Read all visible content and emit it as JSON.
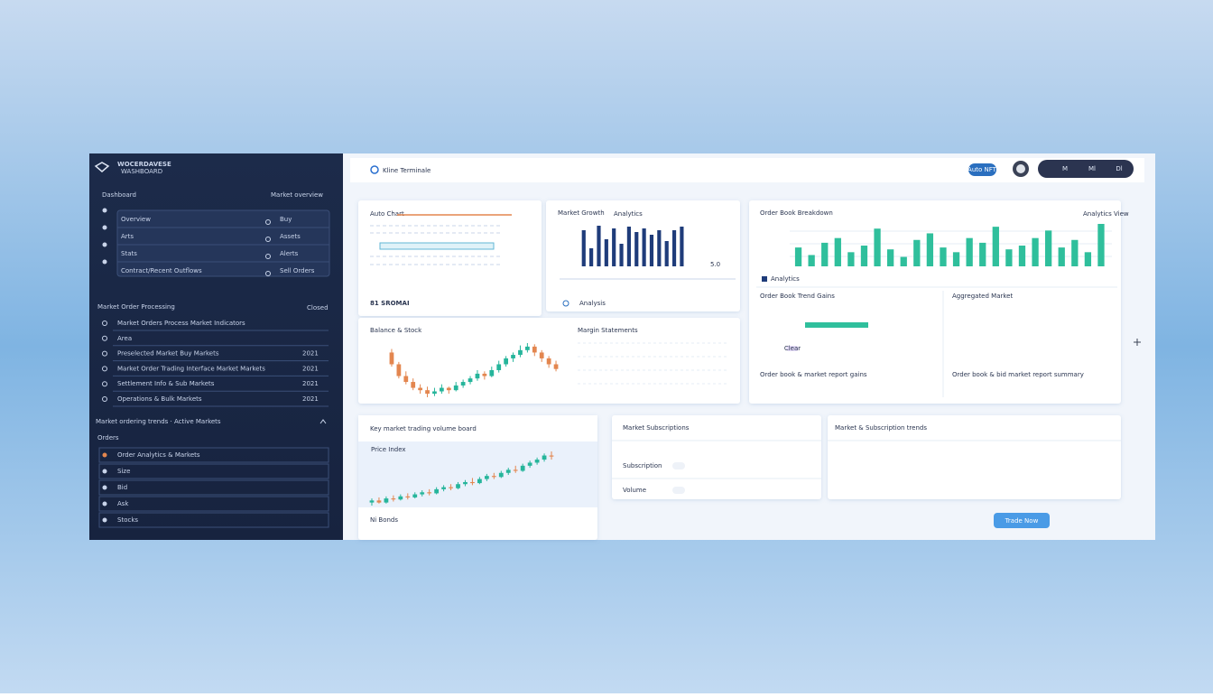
{
  "sidebar": {
    "brand": "WOCERDAVESE",
    "brand_sub": "WASHBOARD",
    "dashboard": {
      "title": "Dashboard",
      "action": "Market overview",
      "rows": [
        {
          "label": "Overview",
          "tag": "Buy"
        },
        {
          "label": "Arts",
          "tag": "Assets"
        },
        {
          "label": "Stats",
          "tag": "Alerts"
        },
        {
          "label": "Contract/Recent Outflows",
          "tag": "Sell Orders"
        }
      ]
    },
    "processing": {
      "title": "Market Order Processing",
      "action": "Closed",
      "rows": [
        {
          "label": "Market Orders Process Market Indicators"
        },
        {
          "label": "Area"
        },
        {
          "label": "Preselected Market Buy Markets",
          "value": "2021"
        },
        {
          "label": "Market Order Trading Interface Market Markets",
          "value": "2021"
        },
        {
          "label": "Settlement Info & Sub Markets",
          "value": "2021"
        },
        {
          "label": "Operations & Bulk Markets",
          "value": "2021"
        }
      ]
    },
    "trends": {
      "title": "Market ordering trends · Active Markets",
      "sub": "Orders",
      "rows": [
        "Order Analytics & Markets",
        "Size",
        "Bid",
        "Ask",
        "Stocks"
      ]
    }
  },
  "header": {
    "title": "Kline Terminale",
    "badge": "Auto NFT",
    "buttons": [
      "M",
      "Ml",
      "Dl"
    ]
  },
  "auto_chart": {
    "title": "Auto Chart",
    "value": "81 SROMAI"
  },
  "market_growth": {
    "title": "Market Growth",
    "subtitle": "Analytics",
    "value_label": "5.0",
    "footer": "Analysis",
    "color": "#1f3c7a",
    "values": [
      40,
      20,
      45,
      30,
      42,
      25,
      44,
      38,
      42,
      35,
      40,
      28,
      40,
      44
    ]
  },
  "order_book": {
    "title": "Order Book Breakdown",
    "action": "Analytics View",
    "legend": "Analytics",
    "color": "#2fbf9c",
    "values": [
      20,
      12,
      25,
      30,
      15,
      22,
      40,
      18,
      10,
      28,
      35,
      20,
      15,
      30,
      25,
      42,
      18,
      22,
      30,
      38,
      20,
      28,
      15,
      45
    ],
    "left": {
      "title": "Order Book Trend Gains",
      "tag": "Clear",
      "note": "Order book & market report gains"
    },
    "right": {
      "title": "Aggregated Market",
      "note": "Order book & bid market report summary"
    }
  },
  "balance": {
    "title": "Balance & Stock",
    "subtitle": "Margin Statements",
    "up_color": "#26b59b",
    "down_color": "#e3864f",
    "candles": [
      [
        60,
        63,
        48,
        50
      ],
      [
        50,
        52,
        38,
        40
      ],
      [
        40,
        44,
        33,
        35
      ],
      [
        35,
        38,
        28,
        30
      ],
      [
        30,
        33,
        25,
        28
      ],
      [
        28,
        31,
        22,
        25
      ],
      [
        25,
        30,
        23,
        27
      ],
      [
        27,
        33,
        25,
        30
      ],
      [
        30,
        31,
        25,
        28
      ],
      [
        28,
        35,
        27,
        32
      ],
      [
        32,
        37,
        30,
        35
      ],
      [
        35,
        40,
        33,
        38
      ],
      [
        38,
        45,
        36,
        42
      ],
      [
        42,
        44,
        37,
        40
      ],
      [
        40,
        48,
        39,
        45
      ],
      [
        45,
        53,
        43,
        50
      ],
      [
        50,
        57,
        48,
        55
      ],
      [
        55,
        60,
        52,
        58
      ],
      [
        58,
        66,
        56,
        62
      ],
      [
        62,
        68,
        60,
        65
      ],
      [
        65,
        67,
        57,
        60
      ],
      [
        60,
        62,
        52,
        55
      ],
      [
        55,
        57,
        47,
        50
      ],
      [
        50,
        53,
        44,
        46
      ]
    ]
  },
  "volume_board": {
    "title": "Key market trading volume board",
    "label": "Price Index",
    "footer": "Ni Bonds",
    "up_color": "#26b59b",
    "down_color": "#e3864f",
    "candles": [
      [
        10,
        14,
        7,
        12
      ],
      [
        12,
        15,
        9,
        10
      ],
      [
        10,
        16,
        9,
        14
      ],
      [
        14,
        17,
        11,
        13
      ],
      [
        13,
        18,
        12,
        16
      ],
      [
        16,
        19,
        13,
        15
      ],
      [
        15,
        20,
        14,
        18
      ],
      [
        18,
        22,
        16,
        20
      ],
      [
        20,
        23,
        17,
        19
      ],
      [
        19,
        25,
        18,
        23
      ],
      [
        23,
        27,
        21,
        25
      ],
      [
        25,
        28,
        22,
        24
      ],
      [
        24,
        30,
        23,
        28
      ],
      [
        28,
        32,
        26,
        30
      ],
      [
        30,
        34,
        27,
        29
      ],
      [
        29,
        35,
        28,
        33
      ],
      [
        33,
        38,
        31,
        36
      ],
      [
        36,
        39,
        33,
        35
      ],
      [
        35,
        41,
        34,
        39
      ],
      [
        39,
        44,
        37,
        42
      ],
      [
        42,
        46,
        39,
        41
      ],
      [
        41,
        48,
        40,
        46
      ],
      [
        46,
        51,
        44,
        49
      ],
      [
        49,
        54,
        47,
        52
      ],
      [
        52,
        58,
        50,
        56
      ],
      [
        56,
        60,
        52,
        55
      ]
    ]
  },
  "subscriptions": {
    "title": "Market Subscriptions",
    "rows": [
      "Subscription",
      "Volume"
    ]
  },
  "sub_trends": {
    "title": "Market & Subscription trends"
  },
  "button": "Trade Now"
}
